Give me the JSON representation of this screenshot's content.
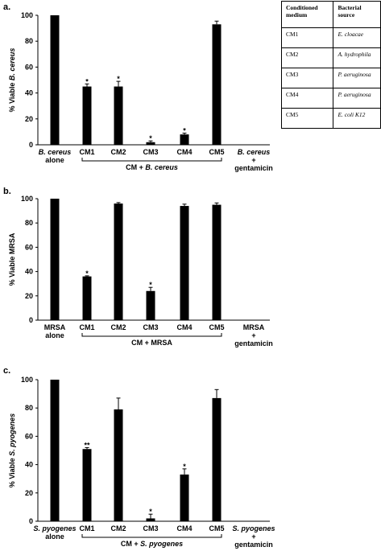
{
  "panels": [
    {
      "letter": "a.",
      "ylabel_prefix": "% Viable ",
      "ylabel_organism": "B. cereus",
      "ylim": [
        0,
        100
      ],
      "yticks": [
        "0",
        "20",
        "40",
        "60",
        "80",
        "100"
      ],
      "first_label": [
        "B. cereus",
        "alone"
      ],
      "last_label": [
        "B. cereus",
        "+",
        "gentamicin"
      ],
      "group_label_prefix": "CM + ",
      "group_label_organism": "B. cereus"
    },
    {
      "letter": "b.",
      "ylabel_prefix": "% Viable MRSA",
      "ylabel_organism": "",
      "ylim": [
        0,
        100
      ],
      "yticks": [
        "0",
        "20",
        "40",
        "60",
        "80",
        "100"
      ],
      "first_label": [
        "MRSA",
        "alone"
      ],
      "last_label": [
        "MRSA",
        "+",
        "gentamicin"
      ],
      "group_label_prefix": "CM + MRSA",
      "group_label_organism": ""
    },
    {
      "letter": "c.",
      "ylabel_prefix": "% Viable ",
      "ylabel_organism": "S. pyogenes",
      "ylim": [
        0,
        100
      ],
      "yticks": [
        "0",
        "20",
        "40",
        "60",
        "80",
        "100"
      ],
      "first_label": [
        "S. pyogenes",
        "alone"
      ],
      "last_label": [
        "S. pyogenes",
        "+",
        "gentamicin"
      ],
      "group_label_prefix": "CM + ",
      "group_label_organism": "S. pyogenes"
    }
  ],
  "chart_data": [
    {
      "type": "bar",
      "categories": [
        "B. cereus alone",
        "CM1",
        "CM2",
        "CM3",
        "CM4",
        "CM5",
        "B. cereus + gentamicin"
      ],
      "values": [
        100,
        45,
        45,
        2,
        8,
        93,
        0
      ],
      "errors": [
        0,
        2,
        4,
        1,
        1,
        2.5,
        0
      ],
      "significance": [
        "",
        "*",
        "*",
        "*",
        "*",
        "",
        ""
      ],
      "ylabel": "% Viable B. cereus",
      "ylim": [
        0,
        100
      ],
      "grid": false
    },
    {
      "type": "bar",
      "categories": [
        "MRSA alone",
        "CM1",
        "CM2",
        "CM3",
        "CM4",
        "CM5",
        "MRSA + gentamicin"
      ],
      "values": [
        100,
        36,
        96,
        24,
        94,
        95,
        0
      ],
      "errors": [
        0,
        0.5,
        0.8,
        3,
        1.5,
        1.5,
        0
      ],
      "significance": [
        "",
        "*",
        "",
        "*",
        "",
        "",
        ""
      ],
      "ylabel": "% Viable MRSA",
      "ylim": [
        0,
        100
      ],
      "grid": false
    },
    {
      "type": "bar",
      "categories": [
        "S. pyogenes alone",
        "CM1",
        "CM2",
        "CM3",
        "CM4",
        "CM5",
        "S. pyogenes + gentamicin"
      ],
      "values": [
        100,
        51,
        79,
        2,
        33,
        87,
        0
      ],
      "errors": [
        0,
        1,
        8,
        3,
        4,
        6,
        0
      ],
      "significance": [
        "",
        "**",
        "",
        "*",
        "*",
        "",
        ""
      ],
      "ylabel": "% Viable S. pyogenes",
      "ylim": [
        0,
        100
      ],
      "grid": false
    }
  ],
  "table": {
    "header": [
      "Conditioned medium",
      "Bacterial source"
    ],
    "rows": [
      [
        "CM1",
        "E. cloacae"
      ],
      [
        "CM2",
        "A. hydrophila"
      ],
      [
        "CM3",
        "P. aeruginosa"
      ],
      [
        "CM4",
        "P. aeruginosa"
      ],
      [
        "CM5",
        "E. coli K12"
      ]
    ]
  }
}
